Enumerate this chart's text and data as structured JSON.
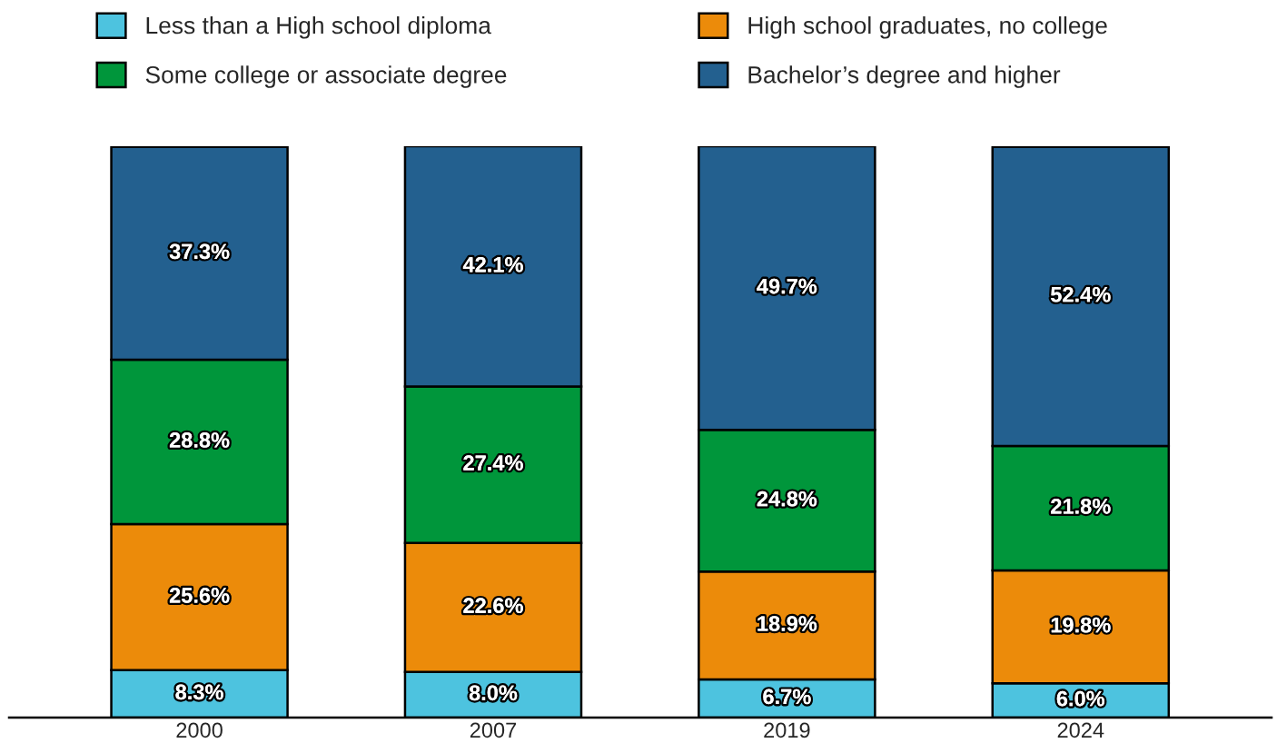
{
  "chart_data": {
    "type": "bar",
    "stacked": true,
    "legend": "top",
    "tick_labels": "x",
    "categories": [
      "2000",
      "2007",
      "2019",
      "2024"
    ],
    "series": [
      {
        "name": "Less than a High school diploma",
        "color": "#4dc3df",
        "values": [
          8.3,
          8.0,
          6.7,
          6.0
        ],
        "value_labels": [
          "8.3%",
          "8.0%",
          "6.7%",
          "6.0%"
        ]
      },
      {
        "name": "High school graduates, no college",
        "color": "#ec8b0a",
        "values": [
          25.6,
          22.6,
          18.9,
          19.8
        ],
        "value_labels": [
          "25.6%",
          "22.6%",
          "18.9%",
          "19.8%"
        ]
      },
      {
        "name": "Some college or associate degree",
        "color": "#00963b",
        "values": [
          28.8,
          27.4,
          24.8,
          21.8
        ],
        "value_labels": [
          "28.8%",
          "27.4%",
          "24.8%",
          "21.8%"
        ]
      },
      {
        "name": "Bachelor’s degree and higher",
        "color": "#23608f",
        "values": [
          37.3,
          42.1,
          49.7,
          52.4
        ],
        "value_labels": [
          "37.3%",
          "42.1%",
          "49.7%",
          "52.4%"
        ]
      }
    ]
  }
}
